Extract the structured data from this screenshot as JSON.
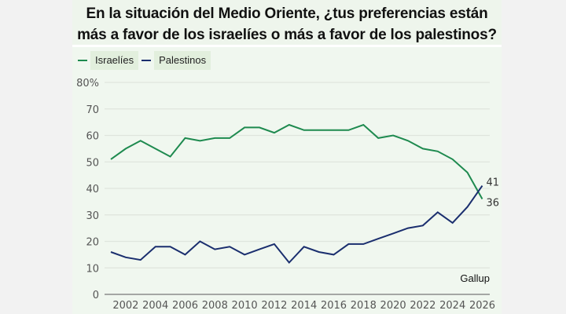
{
  "chart_data": {
    "type": "line",
    "title": "En la situación del Medio Oriente, ¿tus preferencias están más a favor de los israelíes o más a favor de los palestinos?",
    "title_lines": [
      "En la situación del Medio Oriente, ¿tus preferencias están",
      "más a favor de los israelíes o más a favor de los palestinos?"
    ],
    "xlabel": "",
    "ylabel": "",
    "x": [
      2001,
      2002,
      2003,
      2004,
      2005,
      2006,
      2007,
      2008,
      2009,
      2010,
      2011,
      2012,
      2013,
      2014,
      2015,
      2016,
      2017,
      2018,
      2019,
      2020,
      2021,
      2022,
      2023,
      2024,
      2025,
      2026
    ],
    "series": [
      {
        "name": "Israelíes",
        "color": "#1e8a4f",
        "values": [
          51,
          55,
          58,
          55,
          52,
          59,
          58,
          59,
          59,
          63,
          63,
          61,
          64,
          62,
          62,
          62,
          62,
          64,
          59,
          60,
          58,
          55,
          54,
          51,
          46,
          36
        ]
      },
      {
        "name": "Palestinos",
        "color": "#1a2e6e",
        "values": [
          16,
          14,
          13,
          18,
          18,
          15,
          20,
          17,
          18,
          15,
          17,
          19,
          12,
          18,
          16,
          15,
          19,
          19,
          21,
          23,
          25,
          26,
          31,
          27,
          33,
          41
        ]
      }
    ],
    "ylim": [
      0,
      80
    ],
    "yticks": [
      0,
      10,
      20,
      30,
      40,
      50,
      60,
      70,
      80
    ],
    "ytick_labels": [
      "0",
      "10",
      "20",
      "30",
      "40",
      "50",
      "60",
      "70",
      "80%"
    ],
    "xticks": [
      2002,
      2004,
      2006,
      2008,
      2010,
      2012,
      2014,
      2016,
      2018,
      2020,
      2022,
      2024,
      2026
    ],
    "xtick_labels": [
      "2002",
      "2004",
      "2006",
      "2008",
      "2010",
      "2012",
      "2014",
      "2016",
      "2018",
      "2020",
      "2022",
      "2024",
      "2026"
    ],
    "end_labels": [
      "41",
      "36"
    ],
    "grid": true,
    "legend": "top-left",
    "source": "Gallup"
  }
}
